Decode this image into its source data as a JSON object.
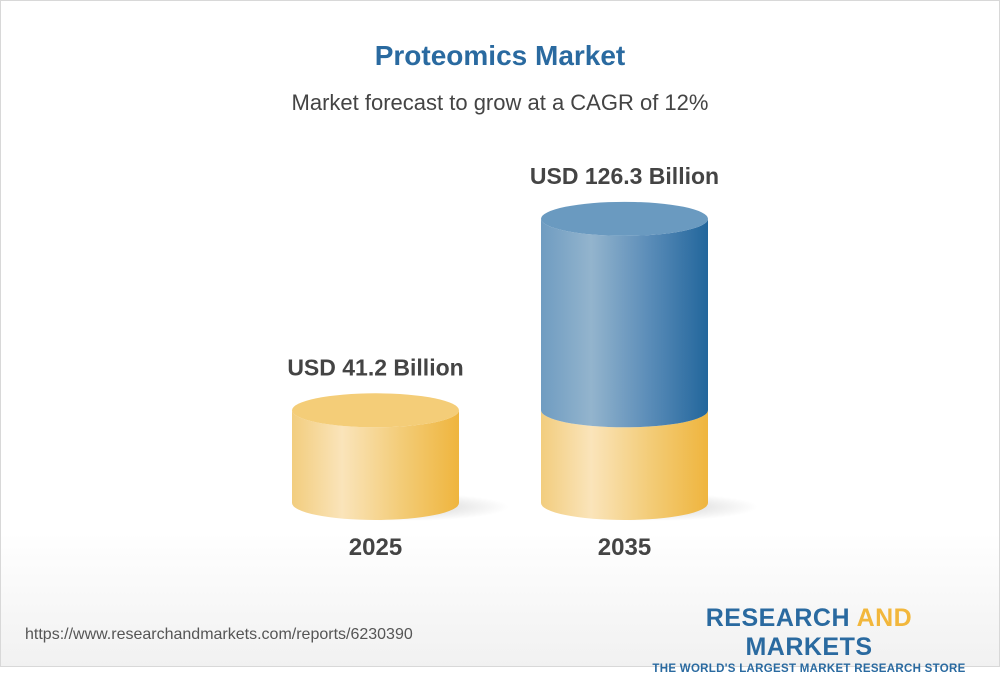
{
  "header": {
    "title": "Proteomics Market",
    "subtitle": "Market forecast to grow at a CAGR of 12%"
  },
  "chart_data": {
    "type": "bar",
    "style": "3d-cylinder",
    "categories": [
      "2025",
      "2035"
    ],
    "values": [
      41.2,
      126.3
    ],
    "data_labels": [
      "USD 41.2 Billion",
      "USD 126.3 Billion"
    ],
    "unit": "USD Billion",
    "colors": {
      "base": "#f2c462",
      "growth": "#4f86b3"
    }
  },
  "footer": {
    "url": "https://www.researchandmarkets.com/reports/6230390",
    "logo_word1": "RESEARCH",
    "logo_word2": "AND",
    "logo_word3": "MARKETS",
    "logo_tagline": "THE WORLD'S LARGEST MARKET RESEARCH STORE"
  }
}
